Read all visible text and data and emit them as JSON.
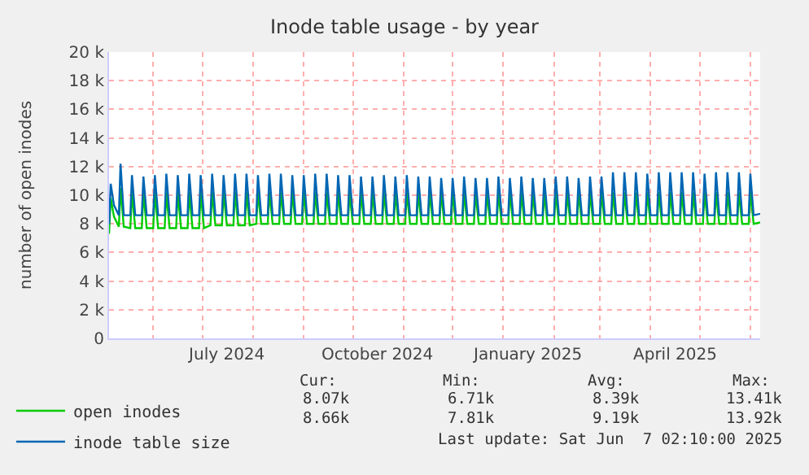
{
  "chart_data": {
    "type": "line",
    "title": "Inode table usage - by year",
    "ylabel": "number of open inodes",
    "xlim": [
      "2024-05-05",
      "2025-06-07"
    ],
    "xticks": [
      {
        "value": "2024-07-16",
        "label": "July 2024"
      },
      {
        "value": "2024-10-16",
        "label": "October 2024"
      },
      {
        "value": "2025-01-16",
        "label": "January 2025"
      },
      {
        "value": "2025-04-16",
        "label": "April 2025"
      }
    ],
    "ylim": [
      0,
      20000
    ],
    "yticks": [
      0,
      {
        "value": 2000,
        "label": "2 k"
      },
      {
        "value": 4000,
        "label": "4 k"
      },
      {
        "value": 6000,
        "label": "6 k"
      },
      {
        "value": 8000,
        "label": "8 k"
      },
      {
        "value": 10000,
        "label": "10 k"
      },
      {
        "value": 12000,
        "label": "12 k"
      },
      {
        "value": 14000,
        "label": "14 k"
      },
      {
        "value": 16000,
        "label": "16 k"
      },
      {
        "value": 18000,
        "label": "18 k"
      },
      {
        "value": 20000,
        "label": "20 k"
      }
    ],
    "grid": true,
    "legend": "bottom left",
    "marker": "none",
    "line_style": "solid",
    "x": [
      "2024-05-05",
      "2024-05-06",
      "2024-05-08",
      "2024-05-11",
      "2024-05-12",
      "2024-05-14",
      "2024-05-18",
      "2024-05-19",
      "2024-05-21",
      "2024-05-25",
      "2024-05-26",
      "2024-05-28",
      "2024-06-01",
      "2024-06-02",
      "2024-06-04",
      "2024-06-08",
      "2024-06-09",
      "2024-06-11",
      "2024-06-15",
      "2024-06-16",
      "2024-06-18",
      "2024-06-22",
      "2024-06-23",
      "2024-06-25",
      "2024-06-29",
      "2024-06-30",
      "2024-07-02",
      "2024-07-06",
      "2024-07-07",
      "2024-07-09",
      "2024-07-13",
      "2024-07-14",
      "2024-07-16",
      "2024-07-20",
      "2024-07-21",
      "2024-07-23",
      "2024-07-27",
      "2024-07-28",
      "2024-07-30",
      "2024-08-03",
      "2024-08-04",
      "2024-08-06",
      "2024-08-10",
      "2024-08-11",
      "2024-08-13",
      "2024-08-17",
      "2024-08-18",
      "2024-08-20",
      "2024-08-24",
      "2024-08-25",
      "2024-08-27",
      "2024-08-31",
      "2024-09-01",
      "2024-09-03",
      "2024-09-07",
      "2024-09-08",
      "2024-09-10",
      "2024-09-14",
      "2024-09-15",
      "2024-09-17",
      "2024-09-21",
      "2024-09-22",
      "2024-09-24",
      "2024-09-28",
      "2024-09-29",
      "2024-10-01",
      "2024-10-05",
      "2024-10-06",
      "2024-10-08",
      "2024-10-12",
      "2024-10-13",
      "2024-10-15",
      "2024-10-19",
      "2024-10-20",
      "2024-10-22",
      "2024-10-26",
      "2024-10-27",
      "2024-10-29",
      "2024-11-02",
      "2024-11-03",
      "2024-11-05",
      "2024-11-09",
      "2024-11-10",
      "2024-11-12",
      "2024-11-16",
      "2024-11-17",
      "2024-11-19",
      "2024-11-23",
      "2024-11-24",
      "2024-11-26",
      "2024-11-30",
      "2024-12-01",
      "2024-12-03",
      "2024-12-07",
      "2024-12-08",
      "2024-12-10",
      "2024-12-14",
      "2024-12-15",
      "2024-12-17",
      "2024-12-21",
      "2024-12-22",
      "2024-12-24",
      "2024-12-28",
      "2024-12-29",
      "2024-12-31",
      "2025-01-04",
      "2025-01-05",
      "2025-01-07",
      "2025-01-11",
      "2025-01-12",
      "2025-01-14",
      "2025-01-18",
      "2025-01-19",
      "2025-01-21",
      "2025-01-25",
      "2025-01-26",
      "2025-01-28",
      "2025-02-01",
      "2025-02-02",
      "2025-02-04",
      "2025-02-08",
      "2025-02-09",
      "2025-02-11",
      "2025-02-15",
      "2025-02-16",
      "2025-02-18",
      "2025-02-22",
      "2025-02-23",
      "2025-02-25",
      "2025-03-01",
      "2025-03-02",
      "2025-03-04",
      "2025-03-08",
      "2025-03-09",
      "2025-03-11",
      "2025-03-15",
      "2025-03-16",
      "2025-03-18",
      "2025-03-22",
      "2025-03-23",
      "2025-03-25",
      "2025-03-29",
      "2025-03-30",
      "2025-04-01",
      "2025-04-05",
      "2025-04-06",
      "2025-04-08",
      "2025-04-12",
      "2025-04-13",
      "2025-04-15",
      "2025-04-19",
      "2025-04-20",
      "2025-04-22",
      "2025-04-26",
      "2025-04-27",
      "2025-04-29",
      "2025-05-03",
      "2025-05-04",
      "2025-05-06",
      "2025-05-10",
      "2025-05-11",
      "2025-05-13",
      "2025-05-17",
      "2025-05-18",
      "2025-05-20",
      "2025-05-24",
      "2025-05-25",
      "2025-05-27",
      "2025-05-31",
      "2025-06-01",
      "2025-06-03",
      "2025-06-07"
    ],
    "series": [
      {
        "name": "open inodes",
        "color": "#00cc00",
        "values": [
          7300,
          9800,
          8500,
          7800,
          10500,
          7800,
          7700,
          10200,
          7700,
          7700,
          10200,
          7700,
          7700,
          10200,
          7700,
          7700,
          10200,
          7700,
          7700,
          10200,
          7700,
          7700,
          10200,
          7700,
          7700,
          10200,
          7700,
          7900,
          10200,
          7900,
          7900,
          10200,
          7900,
          7900,
          10200,
          7900,
          7900,
          10200,
          7900,
          8000,
          10200,
          8000,
          8000,
          10200,
          8000,
          8000,
          10200,
          8000,
          8000,
          10200,
          8000,
          8000,
          10200,
          8000,
          8000,
          10200,
          8000,
          8000,
          10200,
          8000,
          8000,
          10200,
          8000,
          8000,
          10200,
          8000,
          8000,
          10200,
          8000,
          8000,
          10200,
          8000,
          8000,
          10200,
          8000,
          8000,
          10200,
          8000,
          8000,
          10200,
          8000,
          8000,
          10200,
          8000,
          8000,
          10200,
          8000,
          8000,
          10200,
          8000,
          8000,
          10200,
          8000,
          8000,
          10200,
          8000,
          8000,
          10200,
          8000,
          8000,
          10200,
          8000,
          8000,
          10200,
          8000,
          8000,
          10200,
          8000,
          8000,
          10200,
          8000,
          8000,
          10200,
          8000,
          8000,
          10200,
          8000,
          8000,
          10200,
          8000,
          8000,
          10200,
          8000,
          8000,
          10200,
          8000,
          8000,
          10200,
          8000,
          8000,
          10200,
          8000,
          8000,
          10200,
          8000,
          8000,
          10200,
          8000,
          8000,
          10200,
          8000,
          8000,
          10200,
          8000,
          8000,
          10200,
          8000,
          8000,
          10200,
          8000,
          8000,
          10200,
          8000,
          8000,
          10200,
          8000,
          8000,
          10200,
          8000,
          8000,
          10200,
          8000,
          8000,
          10200,
          8000,
          8000,
          10200,
          8000,
          8000,
          10200,
          8000,
          8100
        ]
      },
      {
        "name": "inode table size",
        "color": "#0066b3",
        "values": [
          8000,
          10800,
          9300,
          8600,
          12200,
          8600,
          8600,
          11400,
          8600,
          8600,
          11300,
          8600,
          8600,
          11400,
          8600,
          8600,
          11500,
          8600,
          8600,
          11400,
          8600,
          8600,
          11500,
          8600,
          8600,
          11400,
          8600,
          8600,
          11500,
          8600,
          8600,
          11400,
          8600,
          8600,
          11500,
          8600,
          8600,
          11500,
          8600,
          8600,
          11400,
          8600,
          8600,
          11500,
          8600,
          8600,
          11500,
          8600,
          8600,
          11400,
          8600,
          8600,
          11400,
          8600,
          8600,
          11500,
          8600,
          8600,
          11500,
          8600,
          8600,
          11400,
          8600,
          8600,
          11400,
          8600,
          8600,
          11300,
          8600,
          8600,
          11300,
          8600,
          8600,
          11400,
          8600,
          8600,
          11300,
          8600,
          8600,
          11400,
          8600,
          8600,
          11300,
          8600,
          8600,
          11300,
          8600,
          8600,
          11200,
          8600,
          8600,
          11200,
          8600,
          8600,
          11300,
          8600,
          8600,
          11200,
          8600,
          8600,
          11200,
          8600,
          8600,
          11300,
          8600,
          8600,
          11200,
          8600,
          8600,
          11300,
          8600,
          8600,
          11200,
          8600,
          8600,
          11200,
          8600,
          8600,
          11300,
          8600,
          8600,
          11300,
          8600,
          8600,
          11200,
          8600,
          8600,
          11300,
          8600,
          8600,
          11300,
          8600,
          8600,
          11600,
          8600,
          8600,
          11600,
          8600,
          8600,
          11600,
          8600,
          8600,
          11500,
          8600,
          8600,
          11600,
          8600,
          8600,
          11600,
          8600,
          8600,
          11600,
          8600,
          8600,
          11600,
          8600,
          8600,
          11500,
          8600,
          8600,
          11600,
          8600,
          8600,
          11600,
          8600,
          8600,
          11600,
          8600,
          8600,
          11500,
          8600,
          8700
        ]
      }
    ],
    "annotations": [
      "Cur:",
      "Min:",
      "Avg:",
      "Max:",
      "8.07k",
      "6.71k",
      "8.39k",
      "13.41k",
      "8.66k",
      "7.81k",
      "9.19k",
      "13.92k",
      "Last update: Sat Jun  7 02:10:00 2025"
    ]
  }
}
